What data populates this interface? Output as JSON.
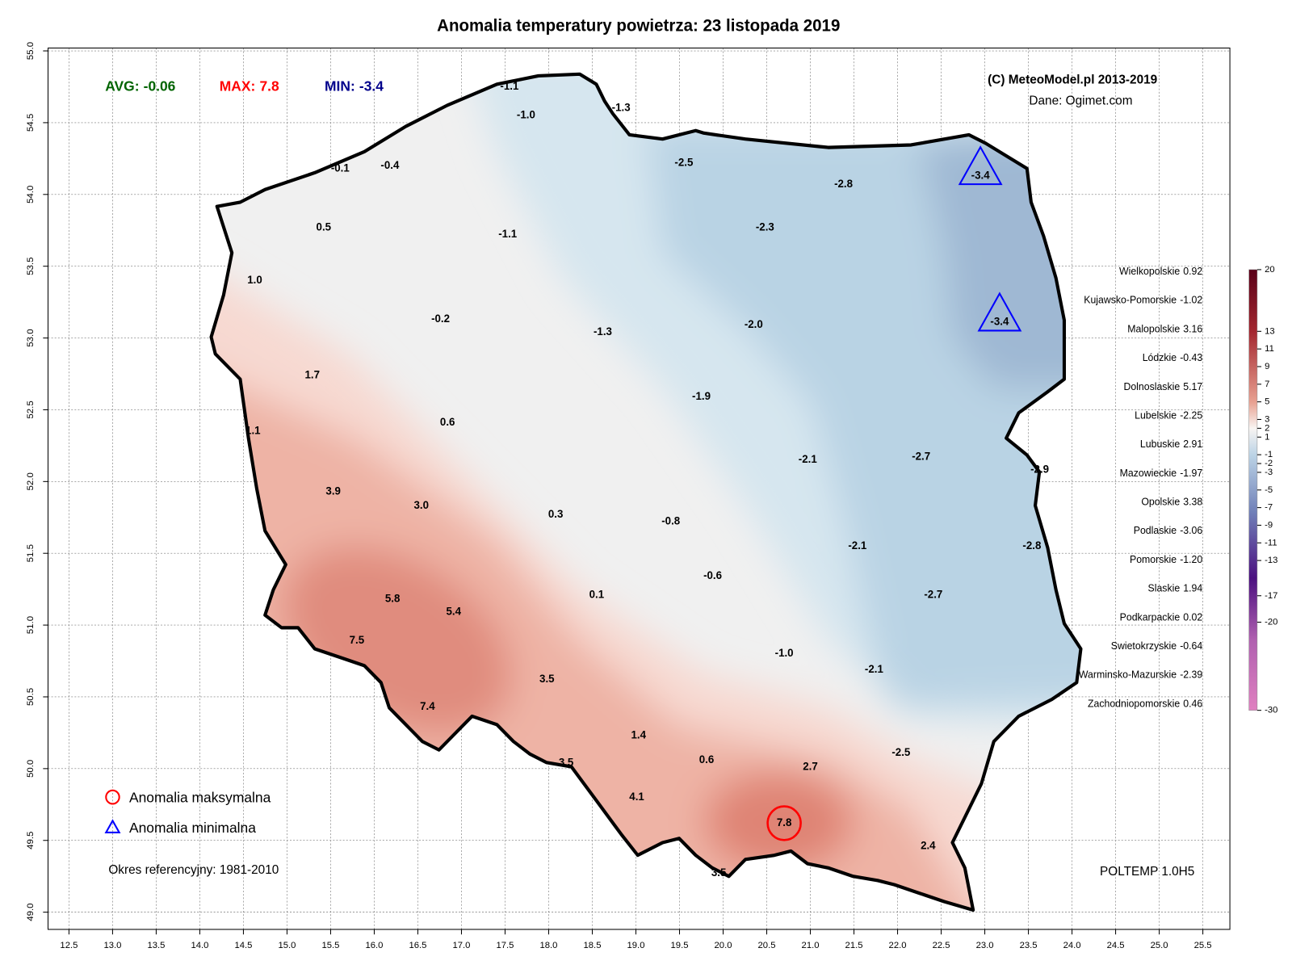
{
  "chart_data": {
    "type": "map",
    "title": "Anomalia temperatury powietrza:  23 listopada 2019",
    "stats": [
      {
        "label": "AVG:",
        "value": -0.06,
        "color": "#006400"
      },
      {
        "label": "MAX:",
        "value": 7.8,
        "color": "#ff0000"
      },
      {
        "label": "MIN:",
        "value": -3.4,
        "color": "#00008b"
      }
    ],
    "credit": "(C) MeteoModel.pl 2013-2019",
    "source": "Dane: Ogimet.com",
    "legend": [
      "Anomalia maksymalna",
      "Anomalia minimalna"
    ],
    "reference": "Okres referencyjny: 1981-2010",
    "version": "POLTEMP 1.0H5",
    "xlim": [
      12.26,
      25.81
    ],
    "ylim": [
      48.88,
      55.02
    ],
    "xticks": [
      12.5,
      {
        "value": 13,
        "label": "13.0"
      },
      13.5,
      {
        "value": 14,
        "label": "14.0"
      },
      14.5,
      {
        "value": 15,
        "label": "15.0"
      },
      15.5,
      {
        "value": 16,
        "label": "16.0"
      },
      16.5,
      {
        "value": 17,
        "label": "17.0"
      },
      17.5,
      {
        "value": 18,
        "label": "18.0"
      },
      18.5,
      {
        "value": 19,
        "label": "19.0"
      },
      19.5,
      {
        "value": 20,
        "label": "20.0"
      },
      20.5,
      {
        "value": 21,
        "label": "21.0"
      },
      21.5,
      {
        "value": 22,
        "label": "22.0"
      },
      22.5,
      {
        "value": 23,
        "label": "23.0"
      },
      23.5,
      {
        "value": 24,
        "label": "24.0"
      },
      24.5,
      {
        "value": 25,
        "label": "25.0"
      },
      25.5
    ],
    "yticks": [
      {
        "value": 49,
        "label": "49.0"
      },
      49.5,
      {
        "value": 50,
        "label": "50.0"
      },
      50.5,
      {
        "value": 51,
        "label": "51.0"
      },
      51.5,
      {
        "value": 52,
        "label": "52.0"
      },
      52.5,
      {
        "value": 53,
        "label": "53.0"
      },
      53.5,
      {
        "value": 54,
        "label": "54.0"
      },
      54.5,
      {
        "value": 55,
        "label": "55.0"
      }
    ],
    "grid": true,
    "stations": [
      {
        "lon": 17.55,
        "lat": 54.75,
        "value": -1.1
      },
      {
        "lon": 17.74,
        "lat": 54.55,
        "value": -1,
        "label": "-1.0"
      },
      {
        "lon": 18.83,
        "lat": 54.6,
        "value": -1.3
      },
      {
        "lon": 19.55,
        "lat": 54.22,
        "value": -2.5
      },
      {
        "lon": 21.38,
        "lat": 54.07,
        "value": -2.8
      },
      {
        "lon": 22.95,
        "lat": 54.13,
        "value": -3.4
      },
      {
        "lon": 15.61,
        "lat": 54.18,
        "value": -0.1
      },
      {
        "lon": 16.18,
        "lat": 54.2,
        "value": -0.4
      },
      {
        "lon": 15.42,
        "lat": 53.77,
        "value": 0.5
      },
      {
        "lon": 20.48,
        "lat": 53.77,
        "value": -2.3
      },
      {
        "lon": 17.53,
        "lat": 53.72,
        "value": -1.1
      },
      {
        "lon": 14.63,
        "lat": 53.4,
        "value": 1,
        "label": "1.0"
      },
      {
        "lon": 16.76,
        "lat": 53.13,
        "value": -0.2
      },
      {
        "lon": 18.62,
        "lat": 53.04,
        "value": -1.3
      },
      {
        "lon": 20.35,
        "lat": 53.09,
        "value": -2,
        "label": "-2.0"
      },
      {
        "lon": 23.17,
        "lat": 53.11,
        "value": -3.4
      },
      {
        "lon": 15.29,
        "lat": 52.74,
        "value": 1.7
      },
      {
        "lon": 19.75,
        "lat": 52.59,
        "value": -1.9
      },
      {
        "lon": 16.84,
        "lat": 52.41,
        "value": 0.6
      },
      {
        "lon": 14.61,
        "lat": 52.35,
        "value": 1.1
      },
      {
        "lon": 20.97,
        "lat": 52.15,
        "value": -2.1
      },
      {
        "lon": 22.27,
        "lat": 52.17,
        "value": -2.7
      },
      {
        "lon": 15.53,
        "lat": 51.93,
        "value": 3.9
      },
      {
        "lon": 16.54,
        "lat": 51.83,
        "value": 3,
        "label": "3.0"
      },
      {
        "lon": 18.08,
        "lat": 51.77,
        "value": 0.3
      },
      {
        "lon": 19.4,
        "lat": 51.72,
        "value": -0.8
      },
      {
        "lon": 21.54,
        "lat": 51.55,
        "value": -2.1
      },
      {
        "lon": 19.88,
        "lat": 51.34,
        "value": -0.6
      },
      {
        "lon": 16.21,
        "lat": 51.18,
        "value": 5.8
      },
      {
        "lon": 16.91,
        "lat": 51.09,
        "value": 5.4
      },
      {
        "lon": 18.55,
        "lat": 51.21,
        "value": 0.1
      },
      {
        "lon": 22.41,
        "lat": 51.21,
        "value": -2.7
      },
      {
        "lon": 15.8,
        "lat": 50.89,
        "value": 7.5
      },
      {
        "lon": 20.7,
        "lat": 50.8,
        "value": -1,
        "label": "-1.0"
      },
      {
        "lon": 17.98,
        "lat": 50.62,
        "value": 3.5
      },
      {
        "lon": 21.73,
        "lat": 50.69,
        "value": -2.1
      },
      {
        "lon": 16.61,
        "lat": 50.43,
        "value": 7.4
      },
      {
        "lon": 19.03,
        "lat": 50.23,
        "value": 1.4
      },
      {
        "lon": 22.04,
        "lat": 50.11,
        "value": -2.5
      },
      {
        "lon": 19.81,
        "lat": 50.06,
        "value": 0.6
      },
      {
        "lon": 18.2,
        "lat": 50.04,
        "value": 3.5
      },
      {
        "lon": 21,
        "lat": 50.01,
        "value": 2.7
      },
      {
        "lon": 19.01,
        "lat": 49.8,
        "value": 4.1
      },
      {
        "lon": 20.7,
        "lat": 49.62,
        "value": 7.8
      },
      {
        "lon": 22.35,
        "lat": 49.46,
        "value": 2.4
      },
      {
        "lon": 19.95,
        "lat": 49.27,
        "value": 3.5
      },
      {
        "lon": 23.63,
        "lat": 52.08,
        "value": -2.9
      },
      {
        "lon": 23.54,
        "lat": 51.55,
        "value": -2.8
      }
    ],
    "max_marker": {
      "lon": 20.7,
      "lat": 49.62
    },
    "min_markers": [
      {
        "lon": 22.95,
        "lat": 54.13
      },
      {
        "lon": 23.17,
        "lat": 53.11
      }
    ],
    "regions": [
      {
        "name": "Wielkopolskie",
        "value": 0.92
      },
      {
        "name": "Kujawsko-Pomorskie",
        "value": -1.02
      },
      {
        "name": "Malopolskie",
        "value": 3.16
      },
      {
        "name": "Lódzkie",
        "value": -0.43
      },
      {
        "name": "Dolnoslaskie",
        "value": 5.17
      },
      {
        "name": "Lubelskie",
        "value": -2.25
      },
      {
        "name": "Lubuskie",
        "value": 2.91
      },
      {
        "name": "Mazowieckie",
        "value": -1.97
      },
      {
        "name": "Opolskie",
        "value": 3.38
      },
      {
        "name": "Podlaskie",
        "value": -3.06
      },
      {
        "name": "Pomorskie",
        "value": -1.2,
        "label": "-1.20"
      },
      {
        "name": "Slaskie",
        "value": 1.94
      },
      {
        "name": "Podkarpackie",
        "value": 0.02
      },
      {
        "name": "Swietokrzyskie",
        "value": -0.64
      },
      {
        "name": "Warminsko-Mazurskie",
        "value": -2.39
      },
      {
        "name": "Zachodniopomorskie",
        "value": 0.46
      }
    ],
    "colorbar": {
      "lim": [
        -30,
        20
      ],
      "ticks": [
        20,
        13,
        11,
        9,
        7,
        5,
        3,
        2,
        1,
        -1,
        -2,
        -3,
        -5,
        -7,
        -9,
        -11,
        -13,
        -17,
        -20,
        -30
      ]
    }
  }
}
